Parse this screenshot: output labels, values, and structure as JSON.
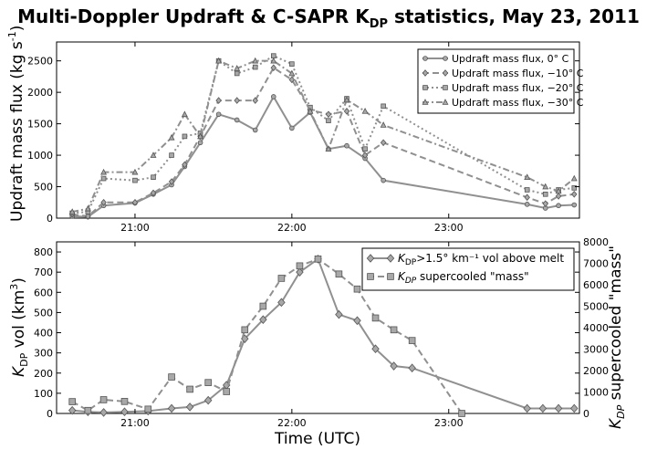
{
  "title": "Multi-Doppler Updraft & C-SAPR K",
  "title_sub": "DP",
  "title_rest": " statistics, May 23, 2011",
  "colors": {
    "line": "#909090",
    "marker_fill": "#a8a8a8",
    "axis": "#000000"
  },
  "chart_data": [
    {
      "type": "line",
      "ylabel": "Updraft mass flux (kg s",
      "ylabel_sup": "-1",
      "ylabel_end": ")",
      "xlim": [
        "20:30",
        "23:50"
      ],
      "ylim": [
        0,
        2800
      ],
      "yticks": [
        0,
        500,
        1000,
        1500,
        2000,
        2500
      ],
      "xticks": [
        "21:00",
        "22:00",
        "23:00"
      ],
      "grid": false,
      "legend_position": "top-right",
      "series": [
        {
          "name": "Updraft mass flux, 0° C",
          "marker": "circle",
          "dash": "solid",
          "x": [
            "20:36",
            "20:42",
            "20:48",
            "21:00",
            "21:07",
            "21:14",
            "21:19",
            "21:25",
            "21:32",
            "21:39",
            "21:46",
            "21:53",
            "22:00",
            "22:07",
            "22:14",
            "22:21",
            "22:28",
            "22:35",
            "23:30",
            "23:37",
            "23:42",
            "23:48"
          ],
          "y": [
            30,
            20,
            200,
            240,
            380,
            530,
            820,
            1200,
            1650,
            1560,
            1400,
            1930,
            1430,
            1680,
            1100,
            1150,
            950,
            600,
            220,
            160,
            200,
            210
          ]
        },
        {
          "name": "Updraft mass flux, −10° C",
          "marker": "diamond",
          "dash": "dash",
          "x": [
            "20:36",
            "20:42",
            "20:48",
            "21:00",
            "21:07",
            "21:14",
            "21:19",
            "21:25",
            "21:32",
            "21:39",
            "21:46",
            "21:53",
            "22:00",
            "22:07",
            "22:14",
            "22:21",
            "22:28",
            "22:35",
            "23:30",
            "23:37",
            "23:42",
            "23:48"
          ],
          "y": [
            60,
            30,
            250,
            250,
            400,
            580,
            850,
            1300,
            1870,
            1870,
            1870,
            2390,
            2200,
            1720,
            1650,
            1700,
            1000,
            1200,
            330,
            230,
            350,
            380
          ]
        },
        {
          "name": "Updraft mass flux, −20° C",
          "marker": "square",
          "dash": "dot",
          "x": [
            "20:36",
            "20:42",
            "20:48",
            "21:00",
            "21:07",
            "21:14",
            "21:19",
            "21:25",
            "21:32",
            "21:39",
            "21:46",
            "21:53",
            "22:00",
            "22:07",
            "22:14",
            "22:21",
            "22:28",
            "22:35",
            "23:30",
            "23:37",
            "23:42",
            "23:48"
          ],
          "y": [
            80,
            100,
            630,
            600,
            650,
            1000,
            1300,
            1350,
            2500,
            2300,
            2400,
            2580,
            2450,
            1760,
            1550,
            1900,
            1100,
            1780,
            450,
            380,
            450,
            480
          ]
        },
        {
          "name": "Updraft mass flux, −30° C",
          "marker": "triangle",
          "dash": "dashdot",
          "x": [
            "20:36",
            "20:42",
            "20:48",
            "21:00",
            "21:07",
            "21:14",
            "21:19",
            "21:25",
            "21:32",
            "21:39",
            "21:46",
            "21:53",
            "22:00",
            "22:07",
            "22:14",
            "22:21",
            "22:28",
            "22:35",
            "23:30",
            "23:37",
            "23:42",
            "23:48"
          ],
          "y": [
            100,
            150,
            730,
            730,
            1000,
            1280,
            1650,
            1300,
            2500,
            2380,
            2500,
            2500,
            2300,
            1700,
            1100,
            1880,
            1700,
            1480,
            650,
            500,
            430,
            630
          ]
        }
      ]
    },
    {
      "type": "line",
      "ylabel": "K",
      "ylabel_sub": "DP",
      "ylabel_end": " vol (km",
      "ylabel_sup": "3",
      "ylabel_close": ")",
      "y2label": "K",
      "y2label_sub": "DP",
      "y2label_end": " supercooled \"mass\"",
      "xlabel": "Time (UTC)",
      "xlim": [
        "20:30",
        "23:50"
      ],
      "ylim": [
        0,
        850
      ],
      "yticks": [
        0,
        100,
        200,
        300,
        400,
        500,
        600,
        700,
        800
      ],
      "y2lim": [
        0,
        8000
      ],
      "y2ticks": [
        0,
        1000,
        2000,
        3000,
        4000,
        5000,
        6000,
        7000,
        8000
      ],
      "xticks": [
        "21:00",
        "22:00",
        "23:00"
      ],
      "grid": false,
      "legend_position": "top-right",
      "series": [
        {
          "name": "K",
          "name_sub": "DP",
          "name_rest": ">1.5° km⁻¹ vol above melt",
          "marker": "diamond",
          "dash": "solid",
          "axis": "left",
          "x": [
            "20:36",
            "20:42",
            "20:48",
            "20:56",
            "21:05",
            "21:14",
            "21:21",
            "21:28",
            "21:35",
            "21:42",
            "21:49",
            "21:56",
            "22:03",
            "22:10",
            "22:18",
            "22:25",
            "22:32",
            "22:39",
            "22:46",
            "23:30",
            "23:36",
            "23:42",
            "23:48"
          ],
          "y": [
            15,
            8,
            5,
            8,
            12,
            25,
            32,
            65,
            140,
            370,
            465,
            550,
            700,
            765,
            490,
            460,
            320,
            235,
            225,
            25,
            25,
            25,
            25
          ]
        },
        {
          "name": "K",
          "name_sub": "DP",
          "name_rest": " supercooled \"mass\"",
          "marker": "square",
          "dash": "dash",
          "axis": "right",
          "x": [
            "20:36",
            "20:42",
            "20:48",
            "20:56",
            "21:05",
            "21:14",
            "21:21",
            "21:28",
            "21:35",
            "21:42",
            "21:49",
            "21:56",
            "22:03",
            "22:10",
            "22:18",
            "22:25",
            "22:32",
            "22:39",
            "22:46",
            "23:05"
          ],
          "y": [
            550,
            140,
            640,
            560,
            200,
            1700,
            1130,
            1440,
            1020,
            3900,
            5000,
            6300,
            6880,
            7200,
            6500,
            5800,
            4450,
            3900,
            3400,
            0
          ]
        }
      ]
    }
  ]
}
